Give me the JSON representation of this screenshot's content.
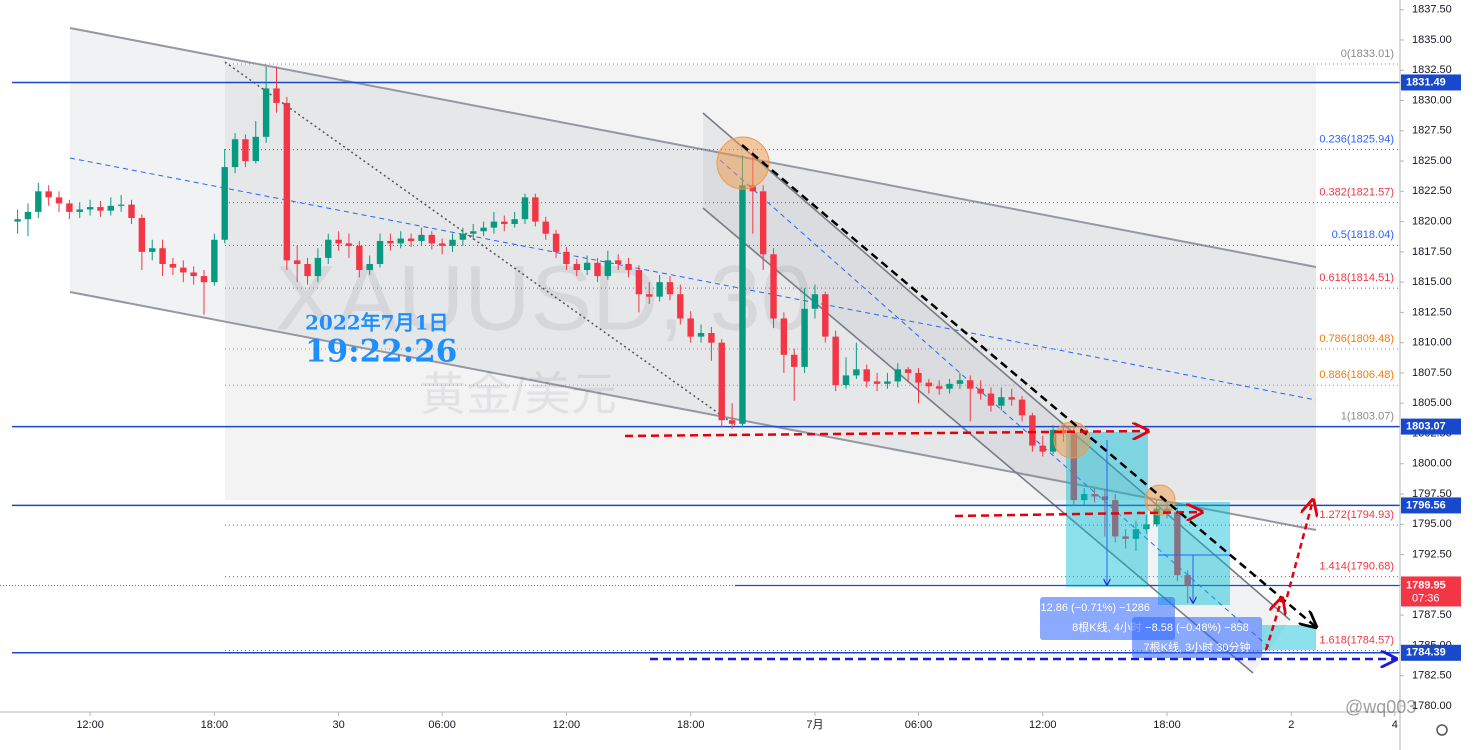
{
  "chart_data": {
    "type": "candlestick",
    "symbol_watermark": "XAUUSD, 30",
    "name_watermark": "黄金/美元",
    "up_color": "#089981",
    "down_color": "#f23645",
    "open": [
      1820.0,
      1820.2,
      1820.8,
      1822.5,
      1822.0,
      1821.5,
      1820.8,
      1821.0,
      1821.2,
      1820.9,
      1821.3,
      1821.4,
      1820.3,
      1817.5,
      1817.8,
      1816.5,
      1816.2,
      1815.8,
      1815.5,
      1815.0,
      1818.5,
      1824.5,
      1826.8,
      1825.0,
      1827.0,
      1831.0,
      1829.8,
      1816.8,
      1816.5,
      1815.5,
      1817.0,
      1818.5,
      1818.2,
      1818.0,
      1816.0,
      1816.5,
      1818.4,
      1818.2,
      1818.6,
      1818.4,
      1818.9,
      1818.2,
      1818.0,
      1818.5,
      1819.0,
      1819.2,
      1819.5,
      1820.0,
      1819.8,
      1820.2,
      1822.0,
      1820.0,
      1819.0,
      1817.5,
      1816.5,
      1816.0,
      1816.6,
      1815.5,
      1816.8,
      1816.5,
      1816.0,
      1814.0,
      1813.8,
      1815.0,
      1814.0,
      1812.0,
      1810.5,
      1810.8,
      1810.0,
      1803.6,
      1803.3,
      1823.0,
      1822.5,
      1817.3,
      1812.0,
      1809.0,
      1808.0,
      1812.8,
      1814.0,
      1810.5,
      1806.5,
      1807.3,
      1807.8,
      1806.8,
      1806.6,
      1806.8,
      1807.8,
      1807.5,
      1806.7,
      1806.4,
      1806.2,
      1806.6,
      1806.9,
      1806.2,
      1805.8,
      1804.8,
      1805.5,
      1805.3,
      1804.0,
      1801.5,
      1801.0,
      1802.8,
      1802.5,
      1797.0,
      1797.5,
      1797.3,
      1797.0,
      1794.0,
      1793.8,
      1794.6,
      1795.0,
      1796.3,
      1796.0,
      1790.8
    ],
    "high": [
      1821.0,
      1821.5,
      1823.2,
      1823.0,
      1822.5,
      1821.8,
      1821.6,
      1821.8,
      1821.7,
      1822.0,
      1822.2,
      1821.8,
      1820.6,
      1818.5,
      1818.5,
      1817.0,
      1816.8,
      1816.3,
      1816.0,
      1819.0,
      1826.0,
      1827.3,
      1827.2,
      1828.3,
      1832.8,
      1832.8,
      1830.3,
      1818.0,
      1817.0,
      1817.8,
      1819.0,
      1819.2,
      1819.0,
      1818.4,
      1817.2,
      1819.0,
      1819.0,
      1819.2,
      1819.0,
      1819.5,
      1819.2,
      1818.6,
      1819.0,
      1819.5,
      1819.8,
      1820.0,
      1820.8,
      1820.5,
      1820.8,
      1822.3,
      1822.3,
      1820.4,
      1819.3,
      1817.9,
      1816.9,
      1817.2,
      1817.0,
      1817.6,
      1817.3,
      1817.0,
      1816.4,
      1815.0,
      1815.6,
      1815.5,
      1814.8,
      1812.6,
      1811.5,
      1811.3,
      1810.3,
      1805.0,
      1825.5,
      1825.8,
      1823.0,
      1817.8,
      1812.5,
      1809.5,
      1814.5,
      1814.8,
      1814.2,
      1811.0,
      1808.8,
      1810.0,
      1808.2,
      1807.5,
      1807.5,
      1808.3,
      1808.0,
      1807.9,
      1807.0,
      1806.9,
      1807.0,
      1807.5,
      1807.3,
      1806.9,
      1806.3,
      1806.3,
      1806.2,
      1805.6,
      1804.2,
      1802.3,
      1803.2,
      1803.3,
      1803.0,
      1798.0,
      1798.0,
      1797.9,
      1797.5,
      1794.6,
      1795.3,
      1795.8,
      1797.0,
      1796.8,
      1796.4,
      1791.2
    ],
    "low": [
      1819.0,
      1818.8,
      1820.3,
      1821.3,
      1820.8,
      1820.2,
      1820.3,
      1820.5,
      1820.4,
      1820.5,
      1820.8,
      1819.8,
      1816.0,
      1816.8,
      1815.5,
      1815.6,
      1815.0,
      1814.8,
      1812.3,
      1814.7,
      1818.2,
      1824.0,
      1824.5,
      1824.8,
      1826.5,
      1829.0,
      1816.0,
      1815.0,
      1814.8,
      1815.0,
      1816.5,
      1817.6,
      1817.0,
      1815.4,
      1815.6,
      1816.2,
      1817.6,
      1817.8,
      1817.9,
      1818.0,
      1817.7,
      1817.3,
      1817.5,
      1818.0,
      1818.5,
      1818.8,
      1819.0,
      1819.2,
      1819.5,
      1819.8,
      1819.6,
      1818.5,
      1817.0,
      1816.0,
      1815.5,
      1815.6,
      1815.0,
      1815.2,
      1816.0,
      1815.4,
      1812.5,
      1813.2,
      1813.4,
      1813.5,
      1811.5,
      1810.0,
      1810.0,
      1808.5,
      1803.0,
      1802.9,
      1803.0,
      1819.0,
      1816.0,
      1811.2,
      1807.5,
      1805.2,
      1807.5,
      1812.0,
      1810.0,
      1806.0,
      1806.2,
      1807.0,
      1806.3,
      1806.0,
      1806.2,
      1806.3,
      1806.8,
      1805.0,
      1805.8,
      1805.7,
      1805.8,
      1806.2,
      1803.5,
      1805.3,
      1804.3,
      1804.4,
      1804.8,
      1803.5,
      1801.0,
      1800.6,
      1800.8,
      1801.8,
      1796.5,
      1796.6,
      1796.8,
      1794.0,
      1793.5,
      1793.0,
      1792.8,
      1794.2,
      1794.8,
      1795.5,
      1790.3,
      1788.5
    ],
    "close": [
      1820.2,
      1820.8,
      1822.5,
      1822.0,
      1821.5,
      1820.8,
      1821.0,
      1821.2,
      1820.9,
      1821.3,
      1821.4,
      1820.3,
      1817.5,
      1817.8,
      1816.5,
      1816.2,
      1815.8,
      1815.5,
      1815.0,
      1818.5,
      1824.5,
      1826.8,
      1825.0,
      1827.0,
      1831.0,
      1829.8,
      1816.8,
      1816.5,
      1815.5,
      1817.0,
      1818.5,
      1818.2,
      1818.0,
      1816.0,
      1816.5,
      1818.4,
      1818.2,
      1818.6,
      1818.4,
      1818.9,
      1818.2,
      1818.0,
      1818.5,
      1819.0,
      1819.2,
      1819.5,
      1820.0,
      1819.8,
      1820.2,
      1822.0,
      1820.0,
      1819.0,
      1817.5,
      1816.5,
      1816.0,
      1816.6,
      1815.5,
      1816.8,
      1816.5,
      1816.0,
      1814.0,
      1813.8,
      1815.0,
      1814.0,
      1812.0,
      1810.5,
      1810.8,
      1810.0,
      1803.6,
      1803.3,
      1823.0,
      1822.5,
      1817.3,
      1812.0,
      1809.0,
      1808.0,
      1812.8,
      1814.0,
      1810.5,
      1806.5,
      1807.3,
      1807.8,
      1806.8,
      1806.6,
      1806.8,
      1807.8,
      1807.5,
      1806.7,
      1806.4,
      1806.2,
      1806.6,
      1806.9,
      1806.2,
      1805.8,
      1804.8,
      1805.5,
      1805.3,
      1804.0,
      1801.5,
      1801.0,
      1802.8,
      1802.5,
      1797.0,
      1797.5,
      1797.3,
      1797.0,
      1794.0,
      1793.8,
      1794.6,
      1795.0,
      1796.3,
      1796.0,
      1790.8,
      1789.95
    ],
    "xlim": [
      -1.7,
      133.5
    ],
    "xticks": [
      {
        "value": 7,
        "label": "12:00"
      },
      {
        "value": 19,
        "label": "18:00"
      },
      {
        "value": 31,
        "label": "30"
      },
      {
        "value": 41,
        "label": "06:00"
      },
      {
        "value": 53,
        "label": "12:00"
      },
      {
        "value": 65,
        "label": "18:00"
      },
      {
        "value": 77,
        "label": "7月"
      },
      {
        "value": 87,
        "label": "06:00"
      },
      {
        "value": 99,
        "label": "12:00"
      },
      {
        "value": 111,
        "label": "18:00"
      },
      {
        "value": 123,
        "label": "2"
      },
      {
        "value": 133,
        "label": "4"
      }
    ],
    "ylim": [
      1779.5,
      1838.3
    ],
    "yticks": [
      {
        "value": 1780,
        "label": "1780.00"
      },
      {
        "value": 1782.5,
        "label": "1782.50"
      },
      {
        "value": 1785,
        "label": "1785.00"
      },
      {
        "value": 1787.5,
        "label": "1787.50"
      },
      {
        "value": 1790,
        "label": "1790.00"
      },
      {
        "value": 1792.5,
        "label": "1792.50"
      },
      {
        "value": 1795,
        "label": "1795.00"
      },
      {
        "value": 1797.5,
        "label": "1797.50"
      },
      {
        "value": 1800,
        "label": "1800.00"
      },
      {
        "value": 1802.5,
        "label": "1802.50"
      },
      {
        "value": 1805,
        "label": "1805.00"
      },
      {
        "value": 1807.5,
        "label": "1807.50"
      },
      {
        "value": 1810,
        "label": "1810.00"
      },
      {
        "value": 1812.5,
        "label": "1812.50"
      },
      {
        "value": 1815,
        "label": "1815.00"
      },
      {
        "value": 1817.5,
        "label": "1817.50"
      },
      {
        "value": 1820,
        "label": "1820.00"
      },
      {
        "value": 1822.5,
        "label": "1822.50"
      },
      {
        "value": 1825,
        "label": "1825.00"
      },
      {
        "value": 1827.5,
        "label": "1827.50"
      },
      {
        "value": 1830,
        "label": "1830.00"
      },
      {
        "value": 1832.5,
        "label": "1832.50"
      },
      {
        "value": 1835,
        "label": "1835.00"
      },
      {
        "value": 1837.5,
        "label": "1837.50"
      }
    ],
    "price_lines": {
      "values": [
        1831.49,
        1803.07,
        1796.56,
        1784.39
      ],
      "color": "#1848cc"
    },
    "last_price": {
      "value": 1789.95,
      "countdown": "07:36",
      "color": "#f23645"
    },
    "fib": {
      "values": [
        1833.01,
        1825.94,
        1821.57,
        1818.04,
        1814.51,
        1809.48,
        1806.48,
        1803.07,
        1794.93,
        1790.68,
        1784.57
      ],
      "value_labels": [
        "0(1833.01)",
        "0.236(1825.94)",
        "0.382(1821.57)",
        "0.5(1818.04)",
        "0.618(1814.51)",
        "0.786(1809.48)",
        "0.886(1806.48)",
        "1(1803.07)",
        "1.272(1794.93)",
        "1.414(1790.68)",
        "1.618(1784.57)"
      ],
      "colors": [
        "#888888",
        "#2962ff",
        "#f23645",
        "#2962ff",
        "#f23645",
        "#f57c00",
        "#f57c00",
        "#888888",
        "#f23645",
        "#f23645",
        "#f23645"
      ]
    },
    "measures": [
      {
        "change": "−12.86 (−0.71%) −1286",
        "bars": "8根K线, 4小时"
      },
      {
        "change": "−8.58 (−0.48%) −858",
        "bars": "7根K线, 3小时 30分钟"
      }
    ]
  },
  "overlay": {
    "date": "2022年7月1日",
    "time": "19:22:26",
    "user": "@wq003"
  }
}
